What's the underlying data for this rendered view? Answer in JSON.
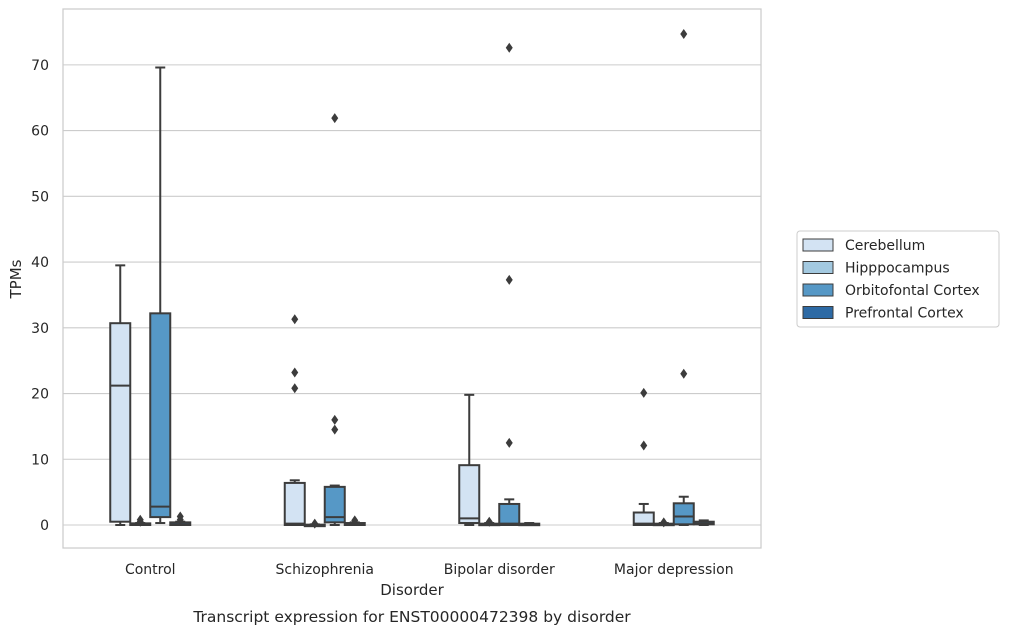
{
  "chart_data": {
    "type": "box",
    "xlabel": "Disorder",
    "ylabel": "TPMs",
    "caption": "Transcript expression for ENST00000472398 by disorder",
    "ylim": [
      -3.5,
      78.5
    ],
    "yticks": [
      "0",
      "10",
      "20",
      "30",
      "40",
      "50",
      "60",
      "70"
    ],
    "ytick_values": [
      0,
      10,
      20,
      30,
      40,
      50,
      60,
      70
    ],
    "grid": "horizontal",
    "legend_position": "right",
    "categories": [
      "Control",
      "Schizophrenia",
      "Bipolar disorder",
      "Major depression"
    ],
    "series": [
      {
        "name": "Cerebellum",
        "color": "#d3e3f3",
        "boxes": [
          {
            "min": 0,
            "q1": 0.5,
            "median": 21.2,
            "q3": 30.7,
            "max": 39.5,
            "outliers": []
          },
          {
            "min": 0,
            "q1": 0,
            "median": 0.2,
            "q3": 6.4,
            "max": 6.8,
            "outliers": [
              20.8,
              23.2,
              31.3
            ]
          },
          {
            "min": 0,
            "q1": 0.3,
            "median": 1.0,
            "q3": 9.1,
            "max": 19.8,
            "outliers": []
          },
          {
            "min": 0,
            "q1": 0,
            "median": 0.2,
            "q3": 1.9,
            "max": 3.2,
            "outliers": [
              12.1,
              20.1
            ]
          }
        ]
      },
      {
        "name": "Hipppocampus",
        "color": "#a3c9e0",
        "boxes": [
          {
            "min": 0,
            "q1": 0,
            "median": 0.1,
            "q3": 0.25,
            "max": 0.3,
            "outliers": [
              0.5,
              0.8
            ]
          },
          {
            "min": 0,
            "q1": 0,
            "median": 0,
            "q3": 0.05,
            "max": 0.1,
            "outliers": [
              0.2
            ]
          },
          {
            "min": 0,
            "q1": 0,
            "median": 0.05,
            "q3": 0.2,
            "max": 0.3,
            "outliers": [
              0.5
            ]
          },
          {
            "min": 0,
            "q1": 0,
            "median": 0.05,
            "q3": 0.2,
            "max": 0.3,
            "outliers": [
              0.4
            ]
          }
        ]
      },
      {
        "name": "Orbitofontal Cortex",
        "color": "#5698c6",
        "boxes": [
          {
            "min": 0.3,
            "q1": 1.2,
            "median": 2.8,
            "q3": 32.2,
            "max": 69.6,
            "outliers": []
          },
          {
            "min": 0,
            "q1": 0.4,
            "median": 1.2,
            "q3": 5.8,
            "max": 6.0,
            "outliers": [
              14.5,
              16.0,
              61.9
            ]
          },
          {
            "min": 0,
            "q1": 0,
            "median": 0.2,
            "q3": 3.2,
            "max": 3.9,
            "outliers": [
              12.5,
              37.3,
              72.6
            ]
          },
          {
            "min": 0,
            "q1": 0.1,
            "median": 1.3,
            "q3": 3.3,
            "max": 4.3,
            "outliers": [
              23.0,
              74.7
            ]
          }
        ]
      },
      {
        "name": "Prefrontal Cortex",
        "color": "#2d6aa5",
        "boxes": [
          {
            "min": 0,
            "q1": 0,
            "median": 0.1,
            "q3": 0.4,
            "max": 0.5,
            "outliers": [
              0.8,
              1.3
            ]
          },
          {
            "min": 0,
            "q1": 0,
            "median": 0.05,
            "q3": 0.3,
            "max": 0.4,
            "outliers": [
              0.7
            ]
          },
          {
            "min": 0,
            "q1": 0,
            "median": 0.05,
            "q3": 0.2,
            "max": 0.3,
            "outliers": []
          },
          {
            "min": 0,
            "q1": 0.1,
            "median": 0.2,
            "q3": 0.5,
            "max": 0.7,
            "outliers": []
          }
        ]
      }
    ]
  }
}
